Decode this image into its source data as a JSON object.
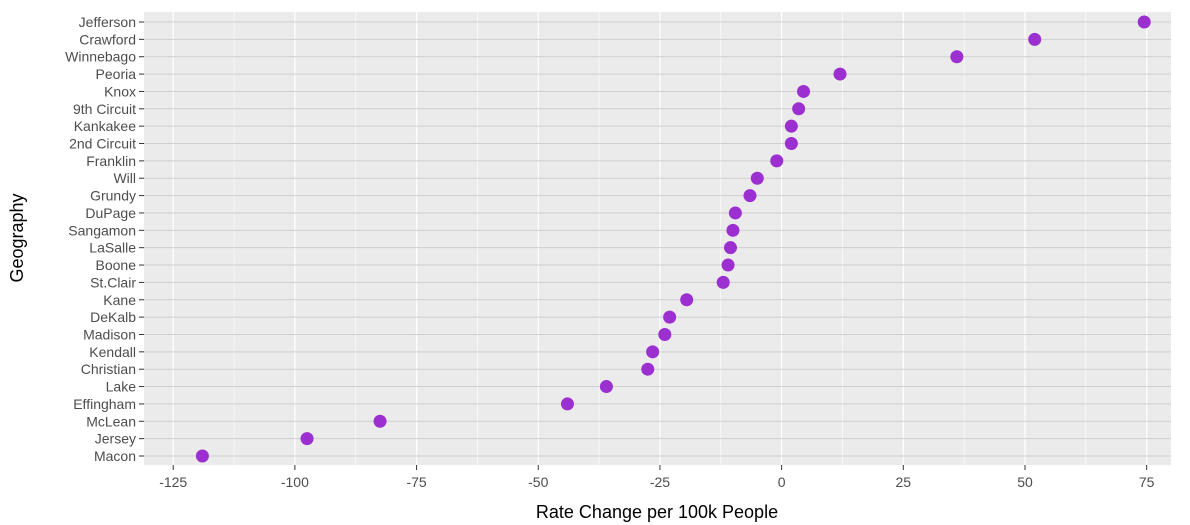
{
  "chart_data": {
    "type": "scatter",
    "title": "",
    "xlabel": "Rate Change per 100k People",
    "ylabel": "Geography",
    "xlim": [
      -131,
      80
    ],
    "x_ticks": [
      -125,
      -100,
      -75,
      -50,
      -25,
      0,
      25,
      50,
      75
    ],
    "x_tick_labels": [
      "-125",
      "-100",
      "-75",
      "-50",
      "-25",
      "0",
      "25",
      "50",
      "75"
    ],
    "grid": true,
    "legend": "none",
    "colors": {
      "panel": "#ebebeb",
      "grid": "#ffffff",
      "point": "#9b2fd0"
    },
    "categories": [
      "Jefferson",
      "Crawford",
      "Winnebago",
      "Peoria",
      "Knox",
      "9th Circuit",
      "Kankakee",
      "2nd Circuit",
      "Franklin",
      "Will",
      "Grundy",
      "DuPage",
      "Sangamon",
      "LaSalle",
      "Boone",
      "St.Clair",
      "Kane",
      "DeKalb",
      "Madison",
      "Kendall",
      "Christian",
      "Lake",
      "Effingham",
      "McLean",
      "Jersey",
      "Macon"
    ],
    "values": [
      74.5,
      52,
      36,
      12,
      4.5,
      3.5,
      2,
      2,
      -1,
      -5,
      -6.5,
      -9.5,
      -10,
      -10.5,
      -11,
      -12,
      -19.5,
      -23,
      -24,
      -26.5,
      -27.5,
      -36,
      -44,
      -82.5,
      -97.5,
      -119
    ]
  }
}
